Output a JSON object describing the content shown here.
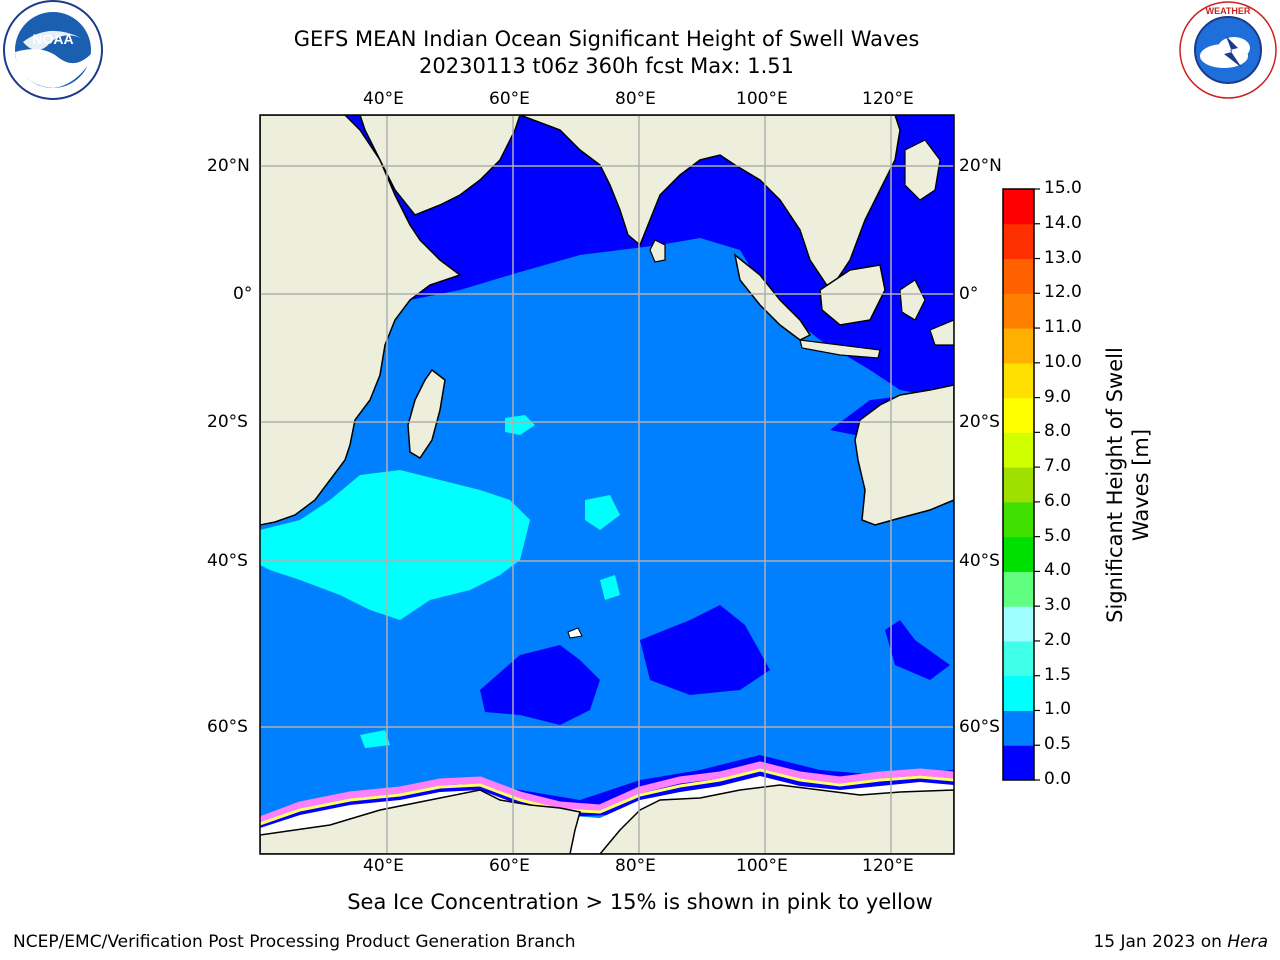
{
  "header": {
    "title_line1": "GEFS MEAN Indian Ocean Significant Height of Swell Waves",
    "title_line2": "20230113 t06z 360h fcst   Max: 1.51"
  },
  "logos": {
    "left": "NOAA",
    "left_ring_text": "NATIONAL OCEANIC AND ATMOSPHERIC ADMINISTRATION · U.S. DEPARTMENT OF COMMERCE",
    "right_ring_text": "NATIONAL WEATHER SERVICE"
  },
  "map": {
    "lon_ticks": [
      "40°E",
      "60°E",
      "80°E",
      "100°E",
      "120°E"
    ],
    "lat_ticks": [
      "20°N",
      "0°",
      "20°S",
      "40°S",
      "60°S"
    ],
    "colors": {
      "land": "#eeeedd",
      "ocean_low": "#0000ff",
      "ocean_mid": "#0080ff",
      "ocean_swell": "#00ffff",
      "grid": "#b0b0b0",
      "ice_edge_pink": "#ff80ff",
      "ice_edge_yellow": "#ffff66"
    }
  },
  "colorbar": {
    "label": "Significant Height of Swell Waves [m]",
    "ticks": [
      "0.0",
      "0.5",
      "1.0",
      "1.5",
      "2.0",
      "3.0",
      "4.0",
      "5.0",
      "6.0",
      "7.0",
      "8.0",
      "9.0",
      "10.0",
      "11.0",
      "12.0",
      "13.0",
      "14.0",
      "15.0"
    ],
    "colors": [
      "#0000ff",
      "#0080ff",
      "#00ffff",
      "#40ffe8",
      "#a0ffff",
      "#60ff80",
      "#00e000",
      "#40e000",
      "#a0e000",
      "#d0ff00",
      "#ffff00",
      "#ffe000",
      "#ffb000",
      "#ff8000",
      "#ff6000",
      "#ff3000",
      "#ff0000"
    ]
  },
  "caption": "Sea Ice Concentration > 15% is shown in pink to yellow",
  "footer": {
    "left": "NCEP/EMC/Verification Post Processing Product Generation Branch",
    "right_prefix": "15 Jan 2023 on ",
    "right_host": "Hera"
  }
}
